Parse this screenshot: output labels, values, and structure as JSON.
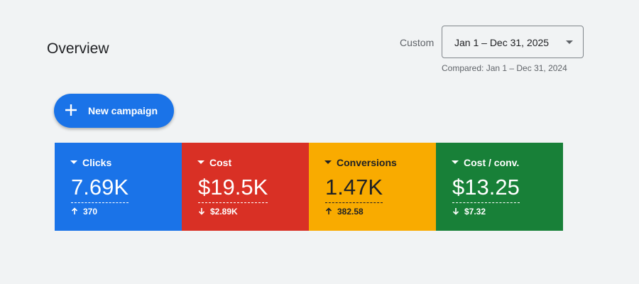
{
  "header": {
    "title": "Overview"
  },
  "date_range": {
    "label": "Custom",
    "selected": "Jan 1 – Dec 31, 2025",
    "compared": "Compared: Jan 1 – Dec 31, 2024"
  },
  "actions": {
    "new_campaign": "New campaign"
  },
  "scorecards": [
    {
      "metric": "Clicks",
      "value": "7.69K",
      "change": "370",
      "direction": "up",
      "color": "#1a73e8",
      "text_color": "#ffffff"
    },
    {
      "metric": "Cost",
      "value": "$19.5K",
      "change": "$2.89K",
      "direction": "down",
      "color": "#d93025",
      "text_color": "#ffffff"
    },
    {
      "metric": "Conversions",
      "value": "1.47K",
      "change": "382.58",
      "direction": "up",
      "color": "#f9ab00",
      "text_color": "#202124"
    },
    {
      "metric": "Cost / conv.",
      "value": "$13.25",
      "change": "$7.32",
      "direction": "down",
      "color": "#188038",
      "text_color": "#ffffff"
    }
  ]
}
